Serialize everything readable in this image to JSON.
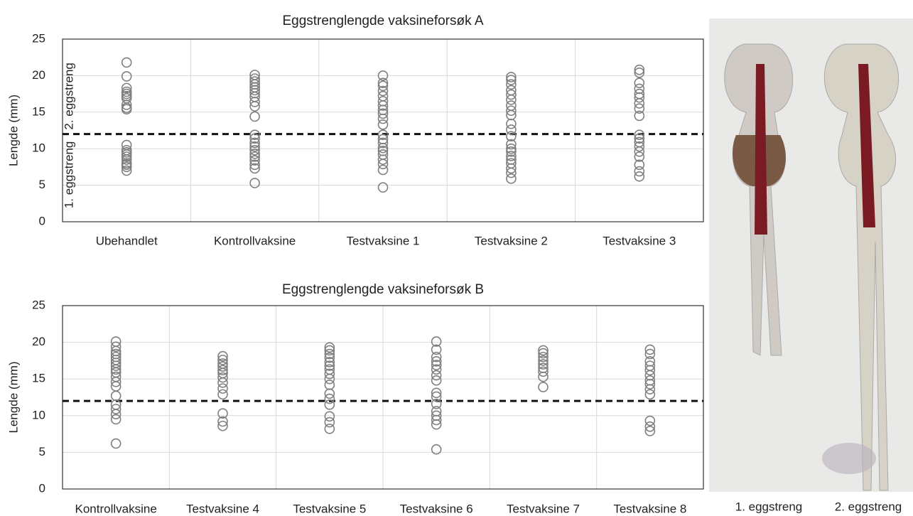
{
  "chart_data": [
    {
      "type": "scatter",
      "title": "Eggstrenglengde vaksineforsøk A",
      "y_label": "Lengde (mm)",
      "categories": [
        "Ubehandlet",
        "Kontrollvaksine",
        "Testvaksine 1",
        "Testvaksine 2",
        "Testvaksine 3"
      ],
      "values": [
        [
          21.8,
          19.9,
          18.3,
          17.8,
          17.5,
          17.2,
          16.9,
          16.0,
          15.6,
          15.4,
          10.5,
          9.8,
          9.5,
          9.2,
          8.9,
          8.5,
          8.0,
          7.8,
          7.5,
          7.0
        ],
        [
          20.1,
          19.6,
          19.2,
          18.8,
          18.4,
          18.0,
          17.6,
          17.1,
          16.4,
          15.8,
          14.4,
          11.9,
          11.4,
          10.8,
          10.3,
          9.8,
          9.3,
          8.9,
          8.4,
          7.8,
          7.3,
          5.3
        ],
        [
          20.0,
          19.0,
          18.6,
          17.9,
          17.2,
          16.5,
          15.9,
          15.3,
          14.8,
          14.1,
          13.3,
          11.9,
          11.3,
          10.8,
          10.1,
          9.7,
          9.2,
          8.5,
          7.9,
          7.1,
          4.7
        ],
        [
          19.8,
          19.4,
          18.8,
          18.0,
          17.4,
          16.7,
          15.9,
          15.2,
          14.6,
          13.4,
          12.6,
          11.7,
          10.6,
          10.0,
          9.6,
          9.0,
          8.5,
          8.0,
          7.3,
          6.7,
          5.9
        ],
        [
          20.8,
          20.4,
          19.0,
          18.2,
          17.5,
          17.0,
          16.2,
          15.5,
          14.5,
          11.9,
          11.4,
          10.9,
          10.3,
          9.6,
          8.9,
          7.8,
          6.9,
          6.2
        ]
      ],
      "color": "#7f7f7f",
      "threshold": 12,
      "annotations": [
        "1. eggstreng",
        "2. eggstreng"
      ],
      "ylim": [
        0,
        25
      ],
      "yticks": [
        0,
        5,
        10,
        15,
        20,
        25
      ],
      "grid": true
    },
    {
      "type": "scatter",
      "title": "Eggstrenglengde vaksineforsøk B",
      "y_label": "Lengde (mm)",
      "categories": [
        "Kontrollvaksine",
        "Testvaksine 4",
        "Testvaksine 5",
        "Testvaksine 6",
        "Testvaksine 7",
        "Testvaksine 8"
      ],
      "values": [
        [
          20.1,
          19.4,
          18.8,
          18.4,
          18.0,
          17.6,
          17.2,
          16.8,
          16.3,
          15.9,
          15.3,
          14.6,
          14.0,
          12.7,
          11.5,
          10.9,
          10.2,
          9.5,
          6.2
        ],
        [
          18.1,
          17.6,
          17.1,
          16.7,
          16.2,
          15.8,
          15.2,
          14.5,
          13.7,
          12.9,
          10.3,
          9.2,
          8.6
        ],
        [
          19.3,
          18.9,
          18.4,
          17.9,
          17.3,
          16.8,
          16.3,
          15.7,
          15.0,
          14.2,
          13.0,
          12.3,
          11.5,
          9.9,
          9.1,
          8.2
        ],
        [
          20.1,
          19.0,
          18.0,
          17.4,
          16.9,
          16.3,
          15.5,
          14.8,
          13.1,
          12.6,
          11.6,
          10.6,
          10.0,
          9.4,
          8.8,
          5.4
        ],
        [
          18.9,
          18.5,
          18.0,
          17.5,
          17.0,
          16.5,
          16.0,
          15.3,
          13.9
        ],
        [
          19.0,
          18.4,
          17.4,
          16.8,
          16.2,
          15.5,
          14.8,
          14.3,
          13.6,
          12.9,
          9.3,
          8.5,
          7.9
        ]
      ],
      "color": "#7f7f7f",
      "threshold": 12,
      "ylim": [
        0,
        25
      ],
      "yticks": [
        0,
        5,
        10,
        15,
        20,
        25
      ],
      "grid": true
    }
  ],
  "image": {
    "captions": [
      "1. eggstreng",
      "2. eggstreng"
    ]
  }
}
